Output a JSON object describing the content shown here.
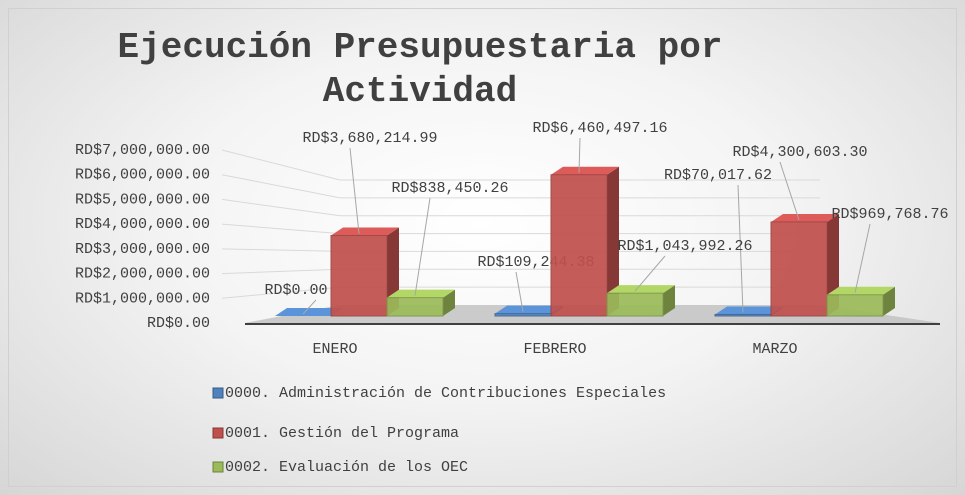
{
  "chart_data": {
    "type": "bar3d",
    "title": "Ejecución Presupuestaria por Actividad",
    "categories": [
      "ENERO",
      "FEBRERO",
      "MARZO"
    ],
    "series": [
      {
        "name": "0000. Administración de Contribuciones Especiales",
        "color": "#4f81bd",
        "values": [
          0,
          109244.38,
          70017.62
        ],
        "value_labels": [
          "RD$0.00",
          "RD$109,244.38",
          "RD$70,017.62"
        ]
      },
      {
        "name": "0001. Gestión del Programa",
        "color": "#c0504d",
        "values": [
          3680214.99,
          6460497.16,
          4300603.3
        ],
        "value_labels": [
          "RD$3,680,214.99",
          "RD$6,460,497.16",
          "RD$4,300,603.30"
        ]
      },
      {
        "name": "0002. Evaluación de los OEC",
        "color": "#9bbb59",
        "values": [
          838450.26,
          1043992.26,
          969768.76
        ],
        "value_labels": [
          "RD$838,450.26",
          "RD$1,043,992.26",
          "RD$969,768.76"
        ]
      }
    ],
    "ylim": [
      0,
      7000000
    ],
    "yticks": [
      {
        "value": 0,
        "label": "RD$0.00"
      },
      {
        "value": 1000000,
        "label": "RD$1,000,000.00"
      },
      {
        "value": 2000000,
        "label": "RD$2,000,000.00"
      },
      {
        "value": 3000000,
        "label": "RD$3,000,000.00"
      },
      {
        "value": 4000000,
        "label": "RD$4,000,000.00"
      },
      {
        "value": 5000000,
        "label": "RD$5,000,000.00"
      },
      {
        "value": 6000000,
        "label": "RD$6,000,000.00"
      },
      {
        "value": 7000000,
        "label": "RD$7,000,000.00"
      }
    ],
    "grid": true,
    "legend": "bottom"
  }
}
